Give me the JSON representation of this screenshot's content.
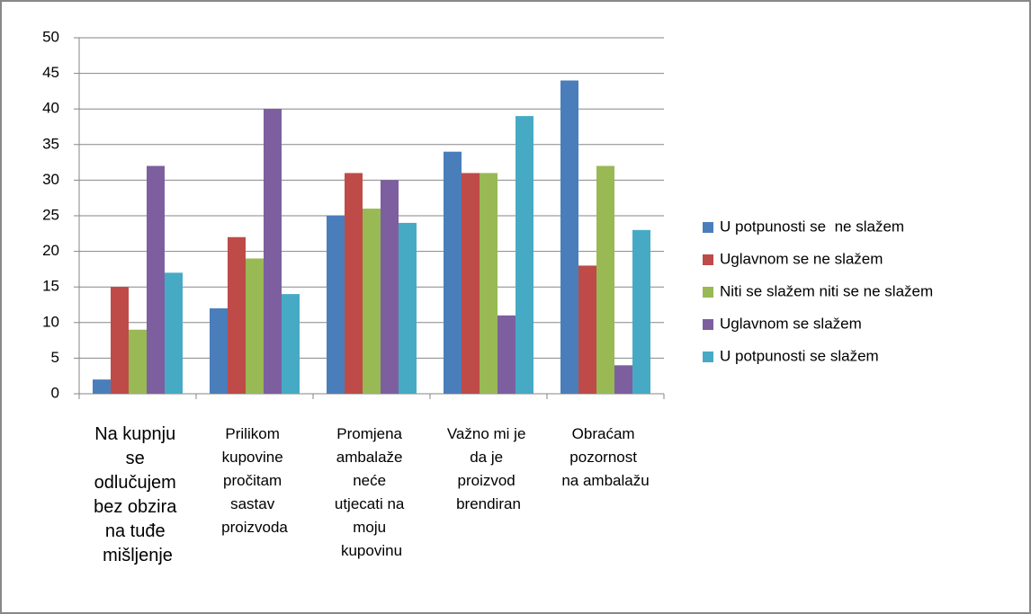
{
  "chart_data": {
    "type": "bar",
    "categories": [
      "Na kupnju se odlučujem bez obzira na tuđe mišljenje",
      "Prilikom kupovine pročitam sastav proizvoda",
      "Promjena ambalaže neće utjecati na moju kupovinu",
      "Važno mi je da je proizvod brendiran",
      "Obraćam pozornost na ambalažu"
    ],
    "series": [
      {
        "name": "U potpunosti se  ne slažem",
        "color": "#4a7ebb",
        "values": [
          2,
          12,
          25,
          34,
          44
        ]
      },
      {
        "name": "Uglavnom se ne slažem",
        "color": "#be4b48",
        "values": [
          15,
          22,
          31,
          31,
          18
        ]
      },
      {
        "name": "Niti se slažem niti se ne slažem",
        "color": "#98b954",
        "values": [
          9,
          19,
          26,
          31,
          32
        ]
      },
      {
        "name": "Uglavnom se slažem",
        "color": "#7d5fa0",
        "values": [
          32,
          40,
          30,
          11,
          4
        ]
      },
      {
        "name": "U potpunosti se slažem",
        "color": "#46aac5",
        "values": [
          17,
          14,
          24,
          39,
          23
        ]
      }
    ],
    "ylim": [
      0,
      50
    ],
    "yticks": [
      0,
      5,
      10,
      15,
      20,
      25,
      30,
      35,
      40,
      45,
      50
    ],
    "grid": true,
    "legend": "right"
  }
}
